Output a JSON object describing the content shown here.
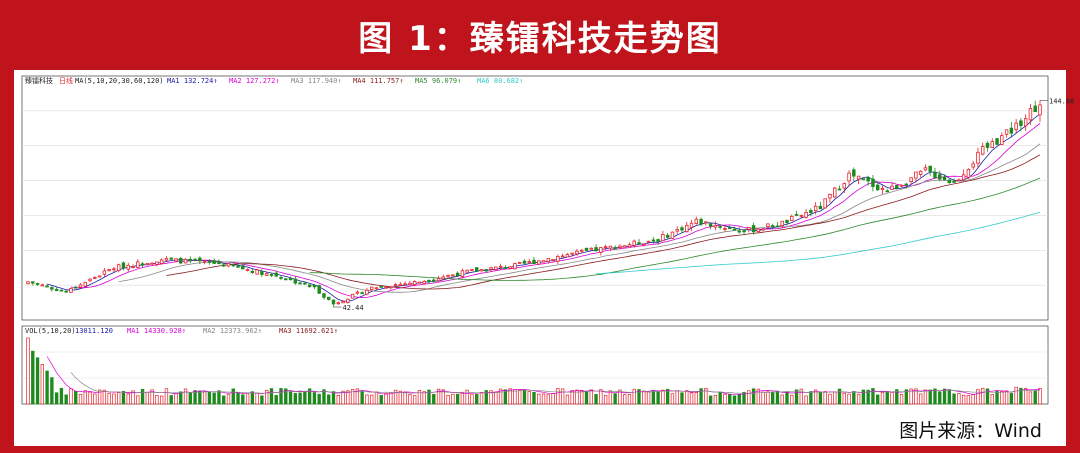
{
  "title": "图 1：臻镭科技走势图",
  "source": "图片来源：Wind",
  "chart_data": {
    "type": "candlestick",
    "title": "臻镭科技走势图",
    "security_label": "臻镭科技",
    "period_label": "日线",
    "colors": {
      "up": "#e8202a",
      "down": "#1d8a1d",
      "ma1": "#1a1aaa",
      "ma2": "#d800d8",
      "ma3": "#888888",
      "ma4": "#8b1a1a",
      "ma5": "#2e8b2e",
      "ma6": "#33cccc"
    },
    "price_panel": {
      "legend_prefix": "MA(5,10,20,30,60,120)",
      "ma_legend": [
        {
          "name": "MA1",
          "value": "132.724"
        },
        {
          "name": "MA2",
          "value": "127.272"
        },
        {
          "name": "MA3",
          "value": "117.940"
        },
        {
          "name": "MA4",
          "value": "111.757"
        },
        {
          "name": "MA5",
          "value": "96.079"
        },
        {
          "name": "MA6",
          "value": "80.682"
        }
      ],
      "high_label": "144.86",
      "low_label": "42.44",
      "ylim": [
        38,
        150
      ],
      "key_points": [
        {
          "i": 0,
          "price": 55
        },
        {
          "i": 8,
          "price": 50
        },
        {
          "i": 18,
          "price": 62
        },
        {
          "i": 28,
          "price": 66
        },
        {
          "i": 40,
          "price": 64
        },
        {
          "i": 52,
          "price": 58
        },
        {
          "i": 60,
          "price": 52
        },
        {
          "i": 64,
          "price": 44
        },
        {
          "i": 72,
          "price": 52
        },
        {
          "i": 82,
          "price": 55
        },
        {
          "i": 92,
          "price": 60
        },
        {
          "i": 102,
          "price": 63
        },
        {
          "i": 112,
          "price": 68
        },
        {
          "i": 122,
          "price": 72
        },
        {
          "i": 132,
          "price": 76
        },
        {
          "i": 140,
          "price": 85
        },
        {
          "i": 150,
          "price": 80
        },
        {
          "i": 158,
          "price": 84
        },
        {
          "i": 166,
          "price": 92
        },
        {
          "i": 172,
          "price": 108
        },
        {
          "i": 180,
          "price": 100
        },
        {
          "i": 188,
          "price": 110
        },
        {
          "i": 194,
          "price": 104
        },
        {
          "i": 200,
          "price": 120
        },
        {
          "i": 206,
          "price": 130
        },
        {
          "i": 212,
          "price": 144
        }
      ]
    },
    "volume_panel": {
      "legend_prefix": "VOL(5,10,20)",
      "value_label": "13011.120",
      "ma_legend": [
        {
          "name": "MA1",
          "value": "14330.928"
        },
        {
          "name": "MA2",
          "value": "12373.962"
        },
        {
          "name": "MA3",
          "value": "11692.621"
        }
      ]
    },
    "candle_count": 213
  }
}
